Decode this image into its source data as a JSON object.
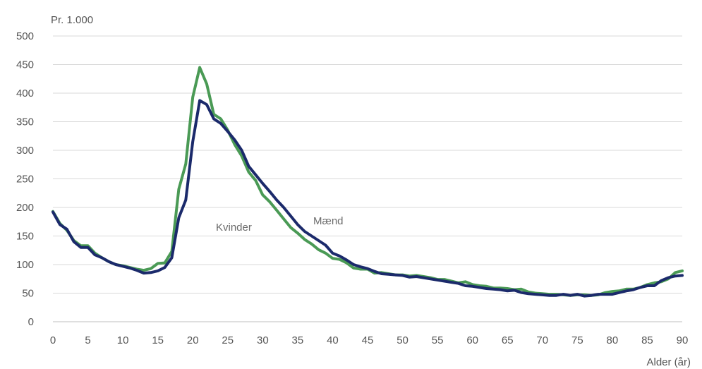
{
  "chart_data": {
    "type": "line",
    "ylabel": "Pr. 1.000",
    "xlabel": "Alder  (år)",
    "xlim": [
      0,
      90
    ],
    "ylim": [
      0,
      500
    ],
    "xticks": [
      0,
      5,
      10,
      15,
      20,
      25,
      30,
      35,
      40,
      45,
      50,
      55,
      60,
      65,
      70,
      75,
      80,
      85,
      90
    ],
    "yticks": [
      0,
      50,
      100,
      150,
      200,
      250,
      300,
      350,
      400,
      450,
      500
    ],
    "grid": true,
    "legend": "inline labels",
    "series": [
      {
        "name": "Mænd",
        "color": "#1b2a6b",
        "x": [
          0,
          1,
          2,
          3,
          4,
          5,
          6,
          7,
          8,
          9,
          10,
          11,
          12,
          13,
          14,
          15,
          16,
          17,
          18,
          19,
          20,
          21,
          22,
          23,
          24,
          25,
          26,
          27,
          28,
          29,
          30,
          31,
          32,
          33,
          34,
          35,
          36,
          37,
          38,
          39,
          40,
          41,
          42,
          43,
          44,
          45,
          46,
          47,
          48,
          49,
          50,
          51,
          52,
          53,
          54,
          55,
          56,
          57,
          58,
          59,
          60,
          61,
          62,
          63,
          64,
          65,
          66,
          67,
          68,
          69,
          70,
          71,
          72,
          73,
          74,
          75,
          76,
          77,
          78,
          79,
          80,
          81,
          82,
          83,
          84,
          85,
          86,
          87,
          88,
          89,
          90
        ],
        "values": [
          192,
          170,
          162,
          140,
          130,
          130,
          117,
          112,
          105,
          100,
          97,
          94,
          90,
          85,
          86,
          89,
          95,
          112,
          182,
          213,
          315,
          387,
          380,
          355,
          347,
          333,
          318,
          300,
          272,
          257,
          242,
          228,
          213,
          200,
          185,
          170,
          158,
          150,
          142,
          134,
          120,
          115,
          108,
          100,
          96,
          93,
          88,
          84,
          83,
          82,
          81,
          78,
          79,
          77,
          75,
          73,
          71,
          69,
          67,
          63,
          62,
          60,
          58,
          57,
          56,
          54,
          55,
          51,
          49,
          48,
          47,
          46,
          46,
          48,
          46,
          48,
          45,
          46,
          48,
          48,
          48,
          51,
          54,
          56,
          60,
          63,
          63,
          72,
          77,
          80,
          81
        ],
        "label_text": "Mænd"
      },
      {
        "name": "Kvinder",
        "color": "#4a9a55",
        "x": [
          0,
          1,
          2,
          3,
          4,
          5,
          6,
          7,
          8,
          9,
          10,
          11,
          12,
          13,
          14,
          15,
          16,
          17,
          18,
          19,
          20,
          21,
          22,
          23,
          24,
          25,
          26,
          27,
          28,
          29,
          30,
          31,
          32,
          33,
          34,
          35,
          36,
          37,
          38,
          39,
          40,
          41,
          42,
          43,
          44,
          45,
          46,
          47,
          48,
          49,
          50,
          51,
          52,
          53,
          54,
          55,
          56,
          57,
          58,
          59,
          60,
          61,
          62,
          63,
          64,
          65,
          66,
          67,
          68,
          69,
          70,
          71,
          72,
          73,
          74,
          75,
          76,
          77,
          78,
          79,
          80,
          81,
          82,
          83,
          84,
          85,
          86,
          87,
          88,
          89,
          90
        ],
        "values": [
          193,
          172,
          160,
          142,
          133,
          133,
          120,
          112,
          105,
          100,
          98,
          95,
          92,
          90,
          93,
          102,
          103,
          123,
          232,
          276,
          393,
          445,
          416,
          363,
          355,
          335,
          310,
          290,
          262,
          247,
          222,
          210,
          195,
          180,
          165,
          155,
          144,
          136,
          126,
          120,
          111,
          109,
          103,
          94,
          92,
          92,
          85,
          86,
          84,
          82,
          82,
          80,
          81,
          79,
          77,
          74,
          74,
          71,
          68,
          70,
          65,
          63,
          62,
          59,
          59,
          58,
          56,
          57,
          52,
          50,
          49,
          48,
          48,
          47,
          46,
          47,
          47,
          46,
          47,
          51,
          53,
          54,
          57,
          57,
          60,
          65,
          68,
          70,
          75,
          86,
          89
        ],
        "label_text": "Kvinder"
      }
    ]
  }
}
